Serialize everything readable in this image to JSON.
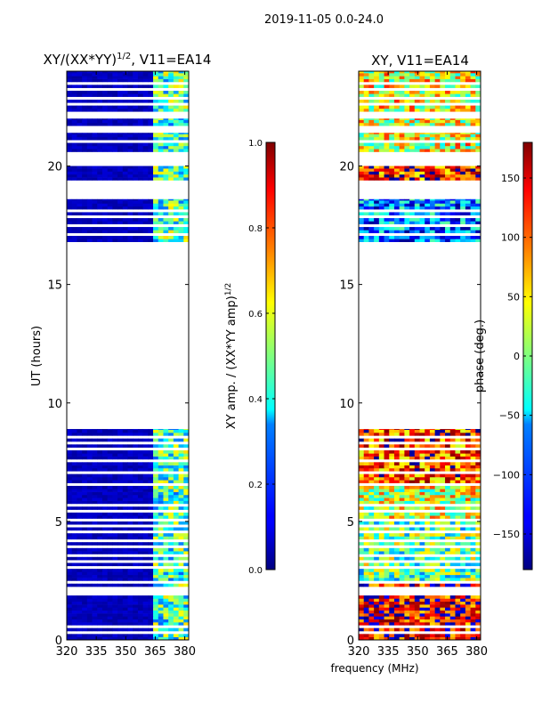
{
  "suptitle": "2019-11-05 0.0-24.0",
  "chart_data": [
    {
      "type": "heatmap",
      "title": "XY/(XX*YY)",
      "title_sup": "1/2",
      "title_suffix": ", V11=EA14",
      "xlabel": "",
      "ylabel": "UT (hours)",
      "xlim": [
        320,
        382
      ],
      "ylim": [
        0,
        24
      ],
      "xticks": [
        320,
        335,
        350,
        365,
        380
      ],
      "yticks": [
        0,
        5,
        10,
        15,
        20
      ],
      "colorbar": {
        "label_prefix": "XY amp. / (XX*YY amp)",
        "label_sup": "1/2",
        "range": [
          0.0,
          1.0
        ],
        "ticks": [
          "0.0",
          "0.2",
          "0.4",
          "0.6",
          "0.8",
          "1.0"
        ]
      },
      "data_spans_hours": [
        [
          0,
          8.9
        ],
        [
          16.8,
          18.6
        ],
        [
          19.4,
          20.0
        ],
        [
          20.6,
          21.4
        ],
        [
          21.7,
          22.0
        ],
        [
          22.3,
          24
        ]
      ],
      "gap_hours": [
        0.3,
        0.6,
        1.9,
        2.05,
        2.2,
        2.4,
        3.0,
        3.3,
        3.6,
        3.9,
        4.2,
        4.5,
        4.8,
        5.1,
        5.4,
        5.7,
        6.6,
        7.0,
        7.5,
        8.0,
        8.3,
        8.6,
        17.1,
        17.5,
        17.8,
        18.1,
        21.0,
        22.6,
        22.9,
        23.2,
        23.5
      ],
      "band_low": {
        "range_mhz": [
          320,
          364
        ],
        "value": 0.03
      },
      "band_high": {
        "range_mhz": [
          364,
          382
        ],
        "value": 0.35
      }
    },
    {
      "type": "heatmap",
      "title": "XY, V11=EA14",
      "xlabel": "frequency (MHz)",
      "ylabel": "",
      "xlim": [
        320,
        382
      ],
      "ylim": [
        0,
        24
      ],
      "xticks": [
        320,
        335,
        350,
        365,
        380
      ],
      "yticks": [
        0,
        5,
        10,
        15,
        20
      ],
      "colorbar": {
        "label": "phase (deg.)",
        "range": [
          -180,
          180
        ],
        "ticks": [
          "−150",
          "−100",
          "−50",
          "0",
          "50",
          "100",
          "150"
        ]
      },
      "data_spans_hours": [
        [
          0,
          8.9
        ],
        [
          16.8,
          18.6
        ],
        [
          19.4,
          20.0
        ],
        [
          20.6,
          21.4
        ],
        [
          21.7,
          22.0
        ],
        [
          22.3,
          24
        ]
      ],
      "gap_hours": [
        0.3,
        0.6,
        1.9,
        2.05,
        2.2,
        2.4,
        3.0,
        3.3,
        3.6,
        3.9,
        4.2,
        4.5,
        4.8,
        5.1,
        5.4,
        5.7,
        6.6,
        7.0,
        7.5,
        8.0,
        8.3,
        8.6,
        17.1,
        17.5,
        17.8,
        18.1,
        21.0,
        22.6,
        22.9,
        23.2,
        23.5
      ],
      "phase_zones": [
        {
          "hours": [
            0,
            2.5
          ],
          "deg": 140
        },
        {
          "hours": [
            2.5,
            5
          ],
          "deg": -10
        },
        {
          "hours": [
            5,
            6.6
          ],
          "deg": 30
        },
        {
          "hours": [
            6.6,
            8.9
          ],
          "deg": 110
        },
        {
          "hours": [
            16.8,
            18.6
          ],
          "deg": -90
        },
        {
          "hours": [
            19.4,
            20.0
          ],
          "deg": 120
        },
        {
          "hours": [
            20.6,
            24
          ],
          "deg": 40
        }
      ]
    }
  ]
}
